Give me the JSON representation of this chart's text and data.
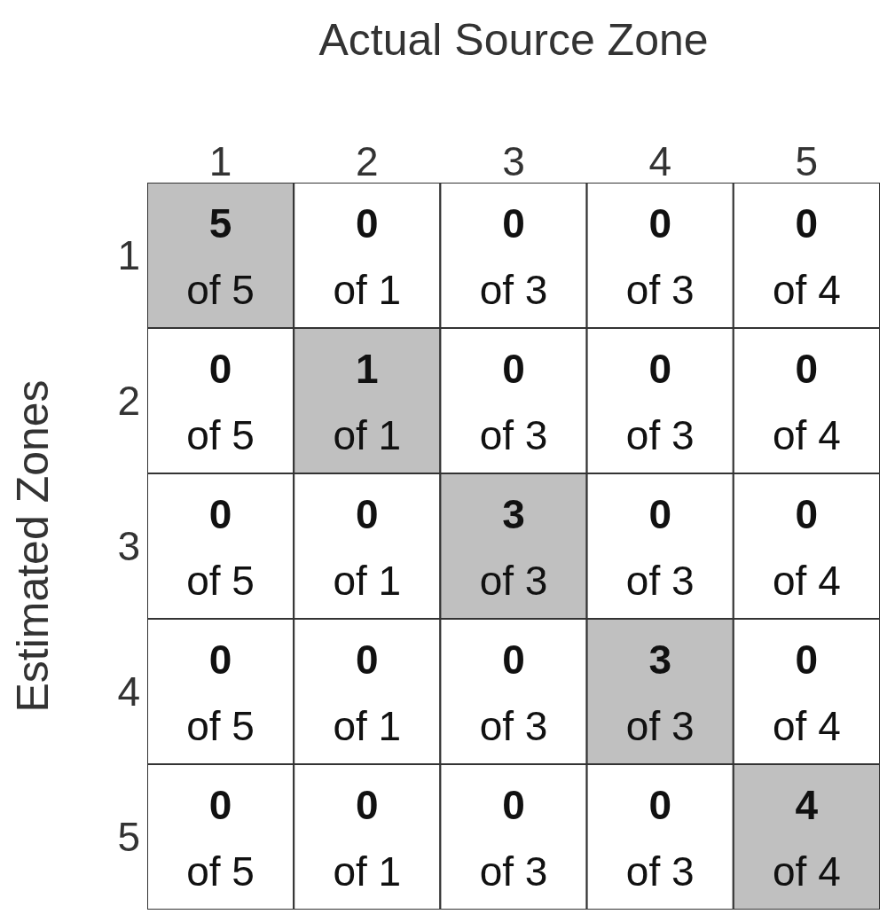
{
  "chart_data": {
    "type": "heatmap",
    "xlabel": "Actual Source Zone",
    "ylabel": "Estimated Zones",
    "categories": [
      "1",
      "2",
      "3",
      "4",
      "5"
    ],
    "y_categories": [
      "1",
      "2",
      "3",
      "4",
      "5"
    ],
    "cells": [
      [
        5,
        0,
        0,
        0,
        0
      ],
      [
        0,
        1,
        0,
        0,
        0
      ],
      [
        0,
        0,
        3,
        0,
        0
      ],
      [
        0,
        0,
        0,
        3,
        0
      ],
      [
        0,
        0,
        0,
        0,
        4
      ]
    ],
    "colors": [
      "#ffffff",
      "#c0c0c0"
    ],
    "data_labels": true,
    "annotations": [
      "of 5",
      "of 1",
      "of 3",
      "of 3",
      "of 4",
      "of 5",
      "of 1",
      "of 3",
      "of 3",
      "of 4",
      "of 5",
      "of 1",
      "of 3",
      "of 3",
      "of 4",
      "of 5",
      "of 1",
      "of 3",
      "of 3",
      "of 4",
      "of 5",
      "of 1",
      "of 3",
      "of 3",
      "of 4"
    ]
  }
}
